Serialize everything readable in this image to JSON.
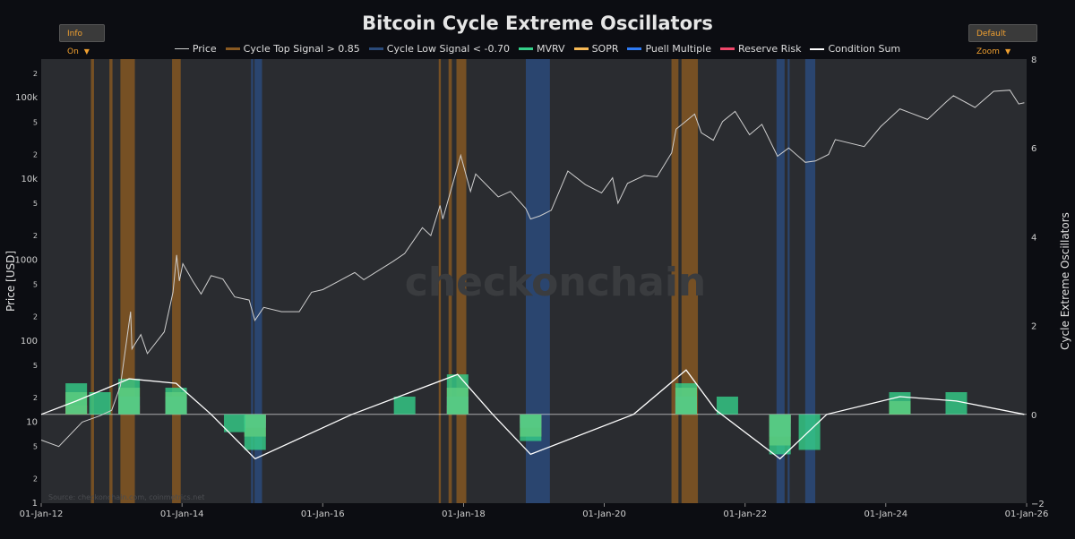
{
  "header": {
    "title": "Bitcoin Cycle Extreme Oscillators",
    "info_button": "Info On",
    "zoom_button": "Default Zoom"
  },
  "watermark": "checkonchain",
  "source_note": "Source: checkonchain.com, coinmetrics.net",
  "colors": {
    "price": "#cfcfcf",
    "top_signal": "#8a5a22",
    "low_signal": "#2a4a7a",
    "mvrv": "#35d08a",
    "sopr": "#f7b955",
    "puell": "#2f7bf5",
    "reserve_risk": "#f0476a",
    "condition_sum": "#ffffff",
    "plot_bg": "#2a2c30",
    "grid": "#3a3c40"
  },
  "chart_data": {
    "type": "line",
    "title": "Bitcoin Cycle Extreme Oscillators",
    "xlabel": "",
    "ylabel": "Price [USD]",
    "y2label": "Cycle Extreme Oscillators",
    "y_scale": "log",
    "ylim": [
      1,
      300000
    ],
    "y2lim": [
      -2,
      8
    ],
    "xlim": [
      "2012-01-01",
      "2026-01-01"
    ],
    "x_ticks": [
      "01-Jan-12",
      "01-Jan-14",
      "01-Jan-16",
      "01-Jan-18",
      "01-Jan-20",
      "01-Jan-22",
      "01-Jan-24",
      "01-Jan-26"
    ],
    "y_ticks": [
      "1",
      "2",
      "5",
      "10",
      "2",
      "5",
      "100",
      "2",
      "5",
      "1000",
      "2",
      "5",
      "10k",
      "2",
      "5",
      "100k",
      "2"
    ],
    "y2_ticks": [
      "−2",
      "0",
      "2",
      "4",
      "6",
      "8"
    ],
    "legend": [
      "Price",
      "Cycle Top Signal > 0.85",
      "Cycle Low Signal < -0.70",
      "MVRV",
      "SOPR",
      "Puell Multiple",
      "Reserve Risk",
      "Condition Sum"
    ],
    "legend_position": "top-center",
    "grid": false,
    "price_series": [
      [
        "2012-01-01",
        6
      ],
      [
        "2012-04-01",
        5
      ],
      [
        "2012-08-01",
        10
      ],
      [
        "2012-11-01",
        12
      ],
      [
        "2013-01-01",
        14
      ],
      [
        "2013-02-15",
        28
      ],
      [
        "2013-04-09",
        230
      ],
      [
        "2013-04-16",
        80
      ],
      [
        "2013-06-01",
        120
      ],
      [
        "2013-07-05",
        70
      ],
      [
        "2013-10-01",
        130
      ],
      [
        "2013-11-15",
        400
      ],
      [
        "2013-12-04",
        1150
      ],
      [
        "2013-12-18",
        550
      ],
      [
        "2014-01-05",
        900
      ],
      [
        "2014-02-25",
        550
      ],
      [
        "2014-04-10",
        380
      ],
      [
        "2014-06-01",
        640
      ],
      [
        "2014-08-01",
        580
      ],
      [
        "2014-10-01",
        350
      ],
      [
        "2014-12-15",
        320
      ],
      [
        "2015-01-14",
        180
      ],
      [
        "2015-03-01",
        260
      ],
      [
        "2015-06-01",
        230
      ],
      [
        "2015-09-01",
        230
      ],
      [
        "2015-11-04",
        400
      ],
      [
        "2016-01-01",
        430
      ],
      [
        "2016-06-15",
        700
      ],
      [
        "2016-08-01",
        570
      ],
      [
        "2016-12-31",
        960
      ],
      [
        "2017-03-01",
        1200
      ],
      [
        "2017-06-01",
        2500
      ],
      [
        "2017-07-15",
        2000
      ],
      [
        "2017-09-01",
        4700
      ],
      [
        "2017-09-15",
        3200
      ],
      [
        "2017-12-17",
        19500
      ],
      [
        "2018-02-06",
        7000
      ],
      [
        "2018-03-05",
        11500
      ],
      [
        "2018-06-30",
        6000
      ],
      [
        "2018-09-01",
        7000
      ],
      [
        "2018-11-20",
        4300
      ],
      [
        "2018-12-15",
        3200
      ],
      [
        "2019-02-01",
        3500
      ],
      [
        "2019-04-01",
        4100
      ],
      [
        "2019-06-26",
        12500
      ],
      [
        "2019-09-25",
        8500
      ],
      [
        "2019-12-18",
        6700
      ],
      [
        "2020-02-13",
        10300
      ],
      [
        "2020-03-12",
        5000
      ],
      [
        "2020-05-01",
        8800
      ],
      [
        "2020-07-27",
        11000
      ],
      [
        "2020-10-01",
        10600
      ],
      [
        "2020-12-16",
        21000
      ],
      [
        "2021-01-08",
        41000
      ],
      [
        "2021-04-14",
        63000
      ],
      [
        "2021-05-19",
        37000
      ],
      [
        "2021-07-20",
        30000
      ],
      [
        "2021-09-06",
        51000
      ],
      [
        "2021-11-10",
        68000
      ],
      [
        "2022-01-24",
        35000
      ],
      [
        "2022-03-29",
        47000
      ],
      [
        "2022-06-18",
        19000
      ],
      [
        "2022-08-15",
        24000
      ],
      [
        "2022-11-09",
        16000
      ],
      [
        "2023-01-01",
        16600
      ],
      [
        "2023-03-10",
        20000
      ],
      [
        "2023-04-14",
        30500
      ],
      [
        "2023-09-11",
        25000
      ],
      [
        "2023-12-05",
        44000
      ],
      [
        "2024-03-14",
        73000
      ],
      [
        "2024-08-05",
        54000
      ],
      [
        "2024-11-12",
        90000
      ],
      [
        "2024-12-17",
        106000
      ],
      [
        "2025-04-08",
        76000
      ],
      [
        "2025-07-14",
        120000
      ],
      [
        "2025-10-06",
        124000
      ],
      [
        "2025-11-21",
        84000
      ],
      [
        "2025-12-20",
        87000
      ]
    ],
    "top_signal_bands": [
      [
        "2012-09-15",
        "2012-10-01"
      ],
      [
        "2012-12-20",
        "2013-01-05"
      ],
      [
        "2013-02-15",
        "2013-05-01"
      ],
      [
        "2013-11-10",
        "2013-12-25"
      ],
      [
        "2017-08-25",
        "2017-09-05"
      ],
      [
        "2017-10-15",
        "2017-11-01"
      ],
      [
        "2017-11-25",
        "2018-01-15"
      ],
      [
        "2020-12-15",
        "2021-01-20"
      ],
      [
        "2021-02-05",
        "2021-05-01"
      ]
    ],
    "low_signal_bands": [
      [
        "2014-12-25",
        "2015-01-05"
      ],
      [
        "2015-01-12",
        "2015-02-20"
      ],
      [
        "2018-11-20",
        "2019-03-25"
      ],
      [
        "2022-06-13",
        "2022-07-25"
      ],
      [
        "2022-08-10",
        "2022-08-20"
      ],
      [
        "2022-11-09",
        "2022-12-31"
      ]
    ],
    "oscillators": {
      "mvrv": [
        [
          "2012-07-01",
          0.7
        ],
        [
          "2012-11-01",
          0.5
        ],
        [
          "2013-04-01",
          0.8
        ],
        [
          "2013-12-01",
          0.6
        ],
        [
          "2014-10-01",
          -0.4
        ],
        [
          "2015-01-15",
          -0.8
        ],
        [
          "2017-03-01",
          0.4
        ],
        [
          "2017-12-01",
          0.9
        ],
        [
          "2018-12-15",
          -0.6
        ],
        [
          "2021-03-01",
          0.7
        ],
        [
          "2021-10-01",
          0.4
        ],
        [
          "2022-07-01",
          -0.9
        ],
        [
          "2022-12-01",
          -0.8
        ],
        [
          "2024-03-14",
          0.5
        ],
        [
          "2025-01-01",
          0.5
        ]
      ],
      "sopr": [
        [
          "2012-07-01",
          0.5
        ],
        [
          "2013-04-01",
          0.6
        ],
        [
          "2013-12-01",
          0.5
        ],
        [
          "2015-01-15",
          -0.5
        ],
        [
          "2017-12-01",
          0.6
        ],
        [
          "2018-12-15",
          -0.5
        ],
        [
          "2021-03-01",
          0.6
        ],
        [
          "2022-07-01",
          -0.7
        ],
        [
          "2024-03-14",
          0.3
        ]
      ],
      "puell": [
        [
          "2013-04-01",
          0.4
        ],
        [
          "2013-12-01",
          0.4
        ],
        [
          "2015-01-15",
          -0.3
        ],
        [
          "2017-12-01",
          0.4
        ],
        [
          "2018-12-15",
          -0.3
        ],
        [
          "2021-03-01",
          0.4
        ],
        [
          "2022-07-01",
          -0.5
        ]
      ],
      "reserve_risk": [
        [
          "2012-07-01",
          0.2
        ],
        [
          "2013-04-01",
          0.2
        ],
        [
          "2015-01-15",
          -0.2
        ],
        [
          "2017-12-01",
          0.2
        ],
        [
          "2018-12-15",
          -0.2
        ],
        [
          "2021-03-01",
          0.2
        ],
        [
          "2022-07-01",
          -0.2
        ]
      ],
      "condition_sum": [
        [
          "2012-01-01",
          0
        ],
        [
          "2012-07-01",
          0.3
        ],
        [
          "2013-04-01",
          0.8
        ],
        [
          "2013-12-01",
          0.7
        ],
        [
          "2014-06-01",
          0
        ],
        [
          "2015-01-15",
          -1.0
        ],
        [
          "2016-06-01",
          0
        ],
        [
          "2017-12-01",
          0.9
        ],
        [
          "2018-06-01",
          0
        ],
        [
          "2018-12-15",
          -0.9
        ],
        [
          "2020-06-01",
          0
        ],
        [
          "2021-03-01",
          1.0
        ],
        [
          "2021-08-01",
          0.1
        ],
        [
          "2022-07-01",
          -1.0
        ],
        [
          "2023-03-01",
          0
        ],
        [
          "2024-03-14",
          0.4
        ],
        [
          "2025-01-01",
          0.3
        ],
        [
          "2025-12-20",
          0
        ]
      ]
    }
  }
}
